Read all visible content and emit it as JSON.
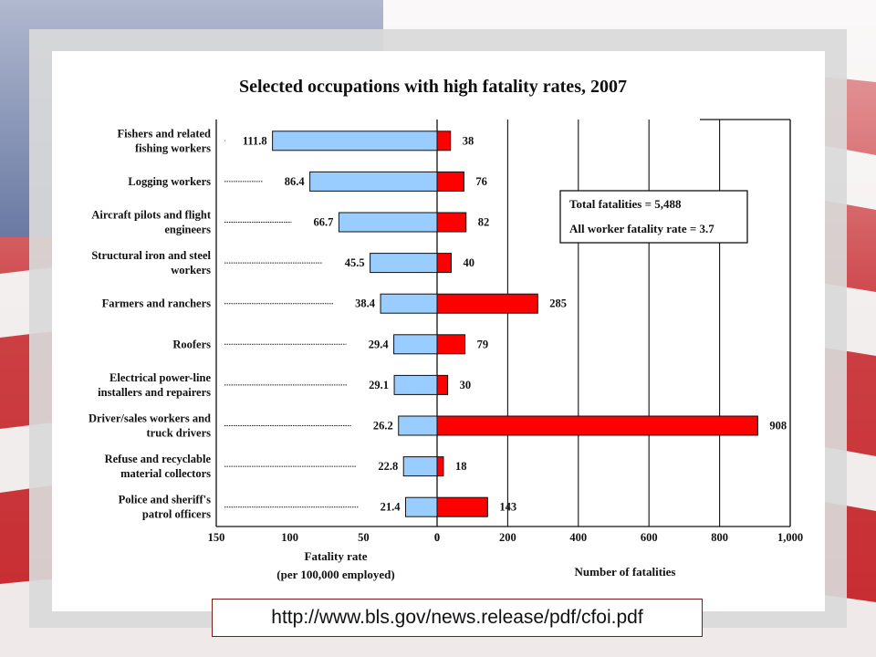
{
  "chart_data": {
    "type": "bar",
    "title": "Selected occupations with high fatality rates, 2007",
    "categories": [
      "Fishers and related fishing workers",
      "Logging workers",
      "Aircraft pilots and flight engineers",
      "Structural iron and steel workers",
      "Farmers and ranchers",
      "Roofers",
      "Electrical power-line installers and repairers",
      "Driver/sales workers and truck drivers",
      "Refuse and recyclable material collectors",
      "Police and sheriff's patrol officers"
    ],
    "category_lines": [
      [
        "Fishers and related",
        "fishing workers"
      ],
      [
        "Logging workers"
      ],
      [
        "Aircraft pilots and flight",
        "engineers"
      ],
      [
        "Structural iron and steel",
        "workers"
      ],
      [
        "Farmers and ranchers"
      ],
      [
        "Roofers"
      ],
      [
        "Electrical power-line",
        "installers and repairers"
      ],
      [
        "Driver/sales workers and",
        "truck drivers"
      ],
      [
        "Refuse and recyclable",
        "material collectors"
      ],
      [
        "Police and sheriff's",
        "patrol officers"
      ]
    ],
    "series": [
      {
        "axis_label_lines": [
          "Fatality rate",
          "(per 100,000 employed)"
        ],
        "values": [
          111.8,
          86.4,
          66.7,
          45.5,
          38.4,
          29.4,
          29.1,
          26.2,
          22.8,
          21.4
        ],
        "labels": [
          "111.8",
          "86.4",
          "66.7",
          "45.5",
          "38.4",
          "29.4",
          "29.1",
          "26.2",
          "22.8",
          "21.4"
        ],
        "range": [
          150,
          0
        ],
        "ticks": [
          150,
          100,
          50,
          0
        ],
        "tick_labels": [
          "150",
          "100",
          "50",
          "0"
        ],
        "color": "#99ccff"
      },
      {
        "axis_label_lines": [
          "Number of fatalities"
        ],
        "values": [
          38,
          76,
          82,
          40,
          285,
          79,
          30,
          908,
          18,
          143
        ],
        "labels": [
          "38",
          "76",
          "82",
          "40",
          "285",
          "79",
          "30",
          "908",
          "18",
          "143"
        ],
        "range": [
          0,
          1000
        ],
        "ticks": [
          200,
          400,
          600,
          800,
          1000
        ],
        "tick_labels": [
          "200",
          "400",
          "600",
          "800",
          "1,000"
        ],
        "color": "#ff0000"
      }
    ],
    "annotation_lines": [
      "Total fatalities = 5,488",
      "All worker fatality rate = 3.7"
    ],
    "grid": "vertical gridlines on right panel",
    "legend": "none"
  },
  "source_url": "http://www.bls.gov/news.release/pdf/cfoi.pdf"
}
